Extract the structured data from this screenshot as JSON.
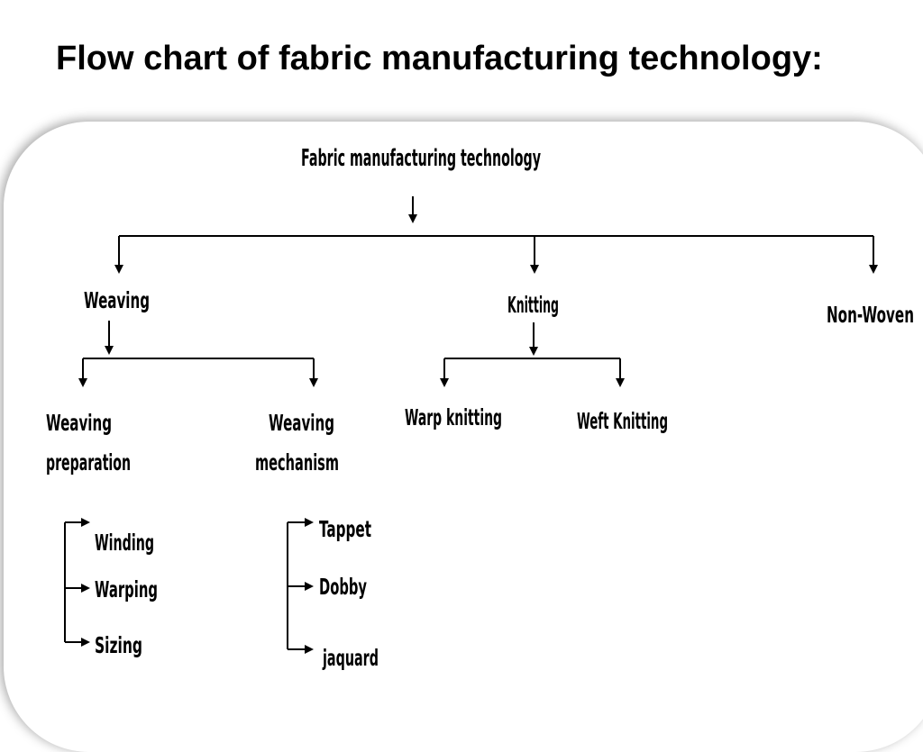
{
  "title": "Flow chart of fabric manufacturing technology:",
  "diagram": {
    "root": "Fabric manufacturing technology",
    "weaving": "Weaving",
    "knitting": "Knitting",
    "non_woven": "Non-Woven",
    "weaving_preparation": [
      "Weaving",
      "preparation"
    ],
    "weaving_mechanism": [
      "Weaving",
      "mechanism"
    ],
    "warp_knitting": "Warp knitting",
    "weft_knitting": "Weft Knitting",
    "preparation_steps": [
      "Winding",
      "Warping",
      "Sizing"
    ],
    "mechanism_types": [
      "Tappet",
      "Dobby",
      "jaquard"
    ]
  }
}
